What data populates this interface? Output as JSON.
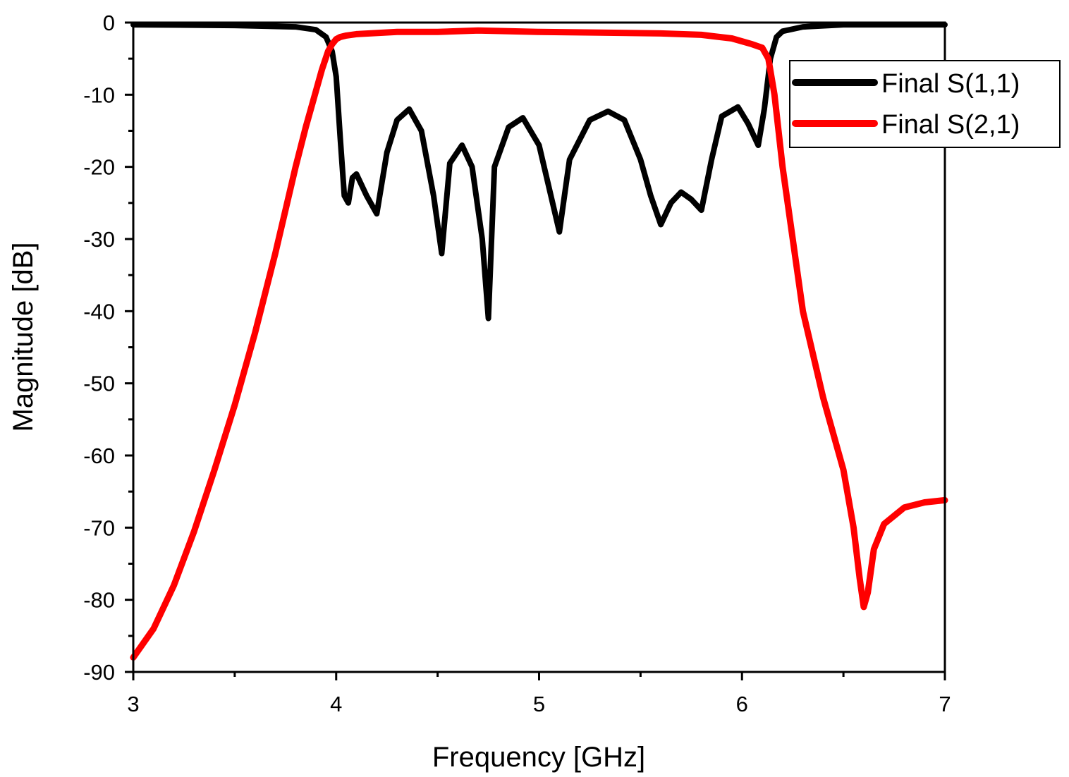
{
  "chart_data": {
    "type": "line",
    "title": "",
    "xlabel": "Frequency [GHz]",
    "ylabel": "Magnitude [dB]",
    "xlim": [
      3,
      7
    ],
    "ylim": [
      -90,
      0
    ],
    "xticks": [
      3,
      4,
      5,
      6,
      7
    ],
    "xtick_labels": [
      "3",
      "4",
      "5",
      "6",
      "7"
    ],
    "yticks": [
      0,
      -10,
      -20,
      -30,
      -40,
      -50,
      -60,
      -70,
      -80,
      -90
    ],
    "ytick_labels": [
      "0",
      "-10",
      "-20",
      "-30",
      "-40",
      "-50",
      "-60",
      "-70",
      "-80",
      "-90"
    ],
    "grid": false,
    "legend_position": "top-right",
    "series": [
      {
        "name": "Final S(1,1)",
        "color": "#000000",
        "x": [
          3.0,
          3.5,
          3.8,
          3.9,
          3.95,
          3.98,
          4.0,
          4.02,
          4.04,
          4.06,
          4.08,
          4.1,
          4.15,
          4.2,
          4.25,
          4.3,
          4.36,
          4.42,
          4.48,
          4.52,
          4.56,
          4.62,
          4.67,
          4.72,
          4.75,
          4.78,
          4.85,
          4.92,
          5.0,
          5.05,
          5.1,
          5.15,
          5.25,
          5.34,
          5.42,
          5.5,
          5.55,
          5.6,
          5.65,
          5.7,
          5.75,
          5.8,
          5.85,
          5.9,
          5.98,
          6.03,
          6.08,
          6.11,
          6.14,
          6.17,
          6.2,
          6.3,
          6.5,
          7.0
        ],
        "y": [
          -0.3,
          -0.4,
          -0.6,
          -1.0,
          -2.0,
          -4.0,
          -7.5,
          -16.0,
          -24.0,
          -25.0,
          -21.5,
          -21.0,
          -24.0,
          -26.5,
          -18.0,
          -13.5,
          -12.0,
          -15.0,
          -24.0,
          -32.0,
          -19.5,
          -17.0,
          -20.0,
          -30.0,
          -41.0,
          -20.0,
          -14.5,
          -13.2,
          -17.0,
          -23.0,
          -29.0,
          -19.0,
          -13.5,
          -12.3,
          -13.5,
          -19.0,
          -24.0,
          -28.0,
          -25.0,
          -23.5,
          -24.5,
          -26.0,
          -19.0,
          -13.0,
          -11.7,
          -14.0,
          -17.0,
          -12.0,
          -5.0,
          -2.0,
          -1.2,
          -0.6,
          -0.3,
          -0.3
        ]
      },
      {
        "name": "Final S(2,1)",
        "color": "#ff0000",
        "x": [
          3.0,
          3.1,
          3.2,
          3.3,
          3.4,
          3.5,
          3.6,
          3.7,
          3.75,
          3.8,
          3.85,
          3.9,
          3.93,
          3.96,
          3.98,
          4.0,
          4.02,
          4.05,
          4.1,
          4.3,
          4.5,
          4.7,
          5.0,
          5.3,
          5.6,
          5.8,
          5.95,
          6.05,
          6.1,
          6.13,
          6.16,
          6.2,
          6.25,
          6.3,
          6.4,
          6.5,
          6.55,
          6.58,
          6.6,
          6.62,
          6.65,
          6.7,
          6.8,
          6.9,
          7.0
        ],
        "y": [
          -88.0,
          -84.0,
          -78.0,
          -70.5,
          -62.0,
          -53.0,
          -43.0,
          -32.0,
          -26.0,
          -20.0,
          -14.5,
          -9.5,
          -6.5,
          -4.0,
          -3.0,
          -2.3,
          -2.0,
          -1.8,
          -1.6,
          -1.3,
          -1.3,
          -1.1,
          -1.3,
          -1.4,
          -1.5,
          -1.7,
          -2.2,
          -3.0,
          -3.5,
          -5.0,
          -10.0,
          -20.0,
          -30.0,
          -40.0,
          -52.0,
          -62.0,
          -70.0,
          -77.0,
          -81.0,
          -79.0,
          -73.0,
          -69.5,
          -67.2,
          -66.5,
          -66.2
        ]
      }
    ]
  }
}
